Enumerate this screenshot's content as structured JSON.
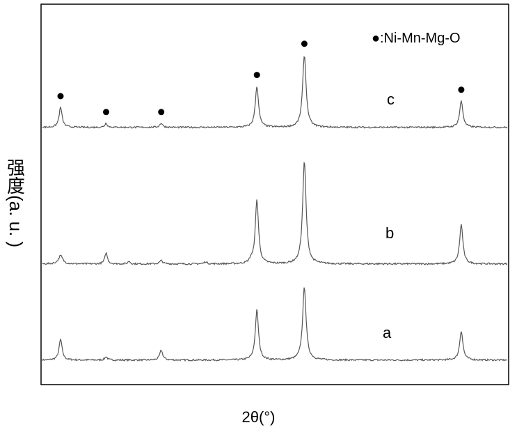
{
  "chart_data": {
    "type": "line",
    "xlabel": "2θ(°)",
    "ylabel_cjk": "强度",
    "ylabel_rest": "(a. u. )",
    "legend_marker": "●",
    "legend_text": ":Ni-Mn-Mg-O",
    "marker_color": "#000000",
    "line_color": "#555555",
    "xlim": [
      0,
      100
    ],
    "grid": false,
    "series": [
      {
        "label": "a",
        "baseline": 0.08,
        "peaks": [
          {
            "x": 5.1,
            "h": 0.75,
            "w": 0.7
          },
          {
            "x": 17.0,
            "h": 0.12,
            "w": 0.6
          },
          {
            "x": 31.4,
            "h": 0.35,
            "w": 0.7
          },
          {
            "x": 56.4,
            "h": 1.8,
            "w": 0.75
          },
          {
            "x": 68.8,
            "h": 2.62,
            "w": 0.8
          },
          {
            "x": 109.8,
            "h": 1.05,
            "w": 0.75
          }
        ]
      },
      {
        "label": "b",
        "baseline": 0.08,
        "peaks": [
          {
            "x": 5.1,
            "h": 0.3,
            "w": 1.0
          },
          {
            "x": 17.0,
            "h": 0.4,
            "w": 0.6
          },
          {
            "x": 23.0,
            "h": 0.1,
            "w": 0.5
          },
          {
            "x": 31.4,
            "h": 0.12,
            "w": 0.7
          },
          {
            "x": 43.0,
            "h": 0.08,
            "w": 0.6
          },
          {
            "x": 54.8,
            "h": 0.12,
            "w": 0.5
          },
          {
            "x": 56.4,
            "h": 2.3,
            "w": 0.75
          },
          {
            "x": 68.8,
            "h": 3.68,
            "w": 0.8
          },
          {
            "x": 109.8,
            "h": 1.42,
            "w": 0.75
          }
        ]
      },
      {
        "label": "c",
        "baseline": 0.08,
        "peaks": [
          {
            "x": 5.1,
            "h": 0.72,
            "w": 0.7
          },
          {
            "x": 17.0,
            "h": 0.15,
            "w": 0.6
          },
          {
            "x": 31.4,
            "h": 0.15,
            "w": 0.7
          },
          {
            "x": 56.4,
            "h": 1.48,
            "w": 0.75
          },
          {
            "x": 68.8,
            "h": 2.6,
            "w": 0.8
          },
          {
            "x": 109.8,
            "h": 0.95,
            "w": 0.75
          }
        ],
        "marked_peaks": [
          5.1,
          17.0,
          31.4,
          56.4,
          68.8,
          109.8
        ]
      }
    ]
  }
}
